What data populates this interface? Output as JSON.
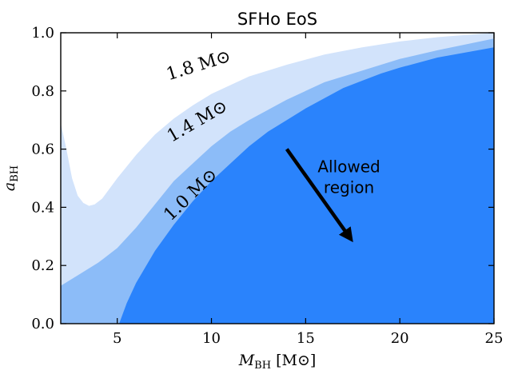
{
  "chart_data": {
    "type": "area",
    "title": "SFHo EoS",
    "xlabel": "M_BH [M⊙]",
    "ylabel": "a_BH",
    "xlim": [
      2.0,
      25.0
    ],
    "ylim": [
      0.0,
      1.0
    ],
    "xticks": [
      5,
      10,
      15,
      20,
      25
    ],
    "xtick_labels": [
      "5",
      "10",
      "15",
      "20",
      "25"
    ],
    "yticks": [
      0.0,
      0.2,
      0.4,
      0.6,
      0.8,
      1.0
    ],
    "ytick_labels": [
      "0.0",
      "0.2",
      "0.4",
      "0.6",
      "0.8",
      "1.0"
    ],
    "series": [
      {
        "name": "1.8 M⊙",
        "color": "#d2e3fb",
        "x": [
          2.0,
          2.3,
          2.6,
          2.9,
          3.2,
          3.5,
          3.8,
          4.2,
          5.0,
          6.0,
          7.0,
          8.0,
          9.0,
          10.0,
          12.0,
          14.0,
          16.0,
          18.0,
          20.0,
          22.0,
          25.0
        ],
        "y_lower": [
          0.69,
          0.6,
          0.5,
          0.44,
          0.415,
          0.405,
          0.41,
          0.43,
          0.5,
          0.58,
          0.65,
          0.705,
          0.75,
          0.79,
          0.85,
          0.89,
          0.925,
          0.95,
          0.97,
          0.985,
          1.0
        ]
      },
      {
        "name": "1.4 M⊙",
        "color": "#8cbcf8",
        "x": [
          2.0,
          3.0,
          4.0,
          5.0,
          6.0,
          7.0,
          8.0,
          9.0,
          10.0,
          11.0,
          12.0,
          13.0,
          14.0,
          15.0,
          16.0,
          18.0,
          20.0,
          22.0,
          25.0
        ],
        "y_lower": [
          0.13,
          0.17,
          0.21,
          0.26,
          0.33,
          0.41,
          0.49,
          0.55,
          0.61,
          0.66,
          0.7,
          0.735,
          0.77,
          0.8,
          0.83,
          0.87,
          0.91,
          0.94,
          0.98
        ]
      },
      {
        "name": "1.0 M⊙",
        "color": "#2a83fc",
        "x": [
          5.1,
          5.5,
          6.0,
          7.0,
          8.0,
          9.0,
          10.0,
          11.0,
          12.0,
          13.0,
          14.0,
          15.0,
          16.0,
          17.0,
          18.0,
          19.0,
          20.0,
          22.0,
          25.0
        ],
        "y_lower": [
          0.0,
          0.07,
          0.14,
          0.25,
          0.34,
          0.42,
          0.49,
          0.55,
          0.61,
          0.66,
          0.7,
          0.74,
          0.775,
          0.81,
          0.835,
          0.86,
          0.88,
          0.915,
          0.95
        ]
      }
    ],
    "annotations": [
      {
        "text": "1.8",
        "unit": "M⊙",
        "x": 9.4,
        "y": 0.87,
        "angle": -17
      },
      {
        "text": "1.4",
        "unit": "M⊙",
        "x": 9.4,
        "y": 0.68,
        "angle": -30
      },
      {
        "text": "1.0",
        "unit": "M⊙",
        "x": 9.1,
        "y": 0.43,
        "angle": -44
      },
      {
        "text_lines": [
          "Allowed",
          "region"
        ],
        "x": 17.3,
        "y": 0.52
      }
    ],
    "arrow": {
      "x_start": 14.0,
      "y_start": 0.6,
      "x_end": 17.3,
      "y_end": 0.3
    },
    "grid": false,
    "legend": "none"
  }
}
